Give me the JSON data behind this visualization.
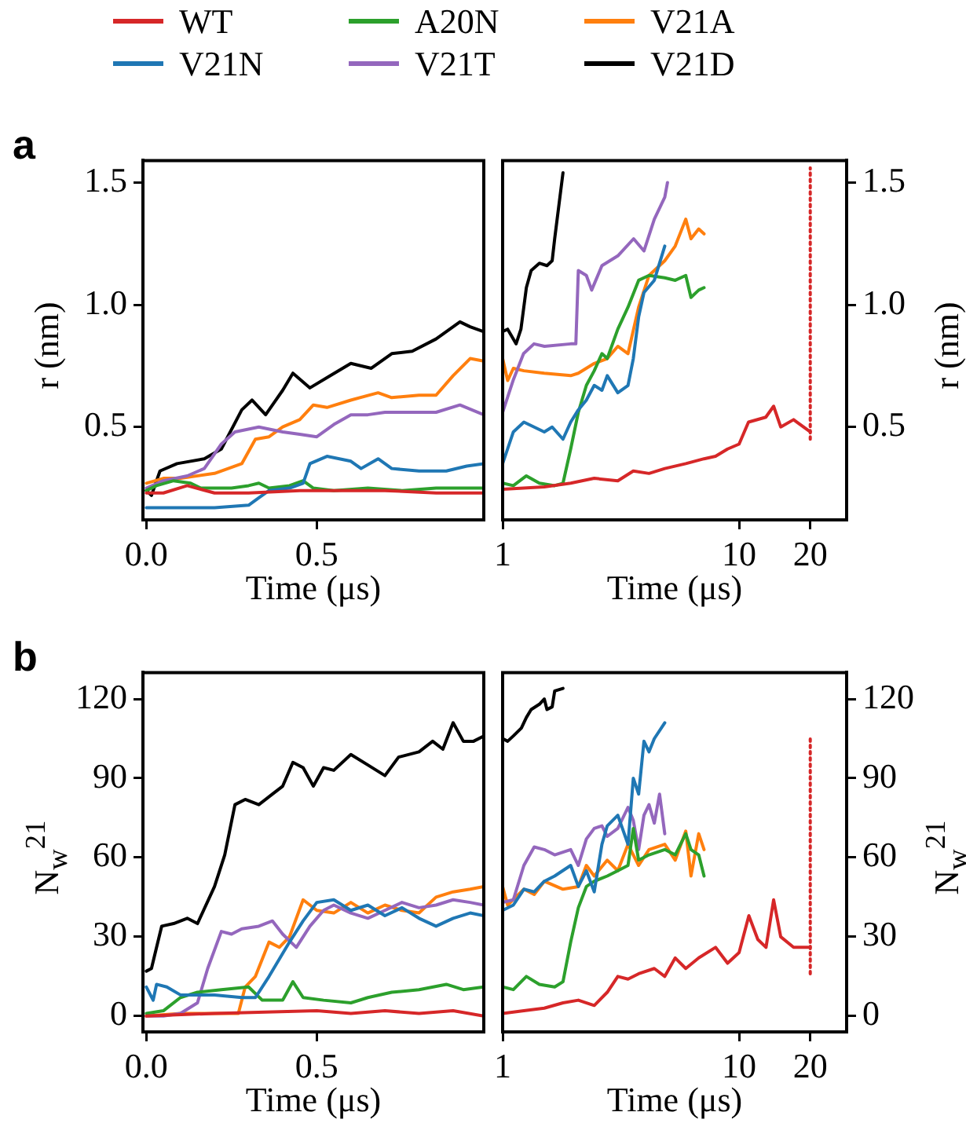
{
  "chart_data": [
    {
      "type": "line",
      "title": "a",
      "xlabel": "Time (μs)",
      "ylabel": "r (nm)",
      "legend": "top",
      "xlim": [
        -0.01,
        0.99
      ],
      "ylim": [
        0.12,
        1.59
      ],
      "xticks": [
        {
          "value": 0,
          "label": "0.0"
        },
        0.5
      ],
      "yticks": [
        0.5,
        {
          "value": 1,
          "label": "1.0"
        },
        1.5
      ],
      "series": [
        {
          "name": "WT",
          "color": "#d62728",
          "x": [
            0,
            0.05,
            0.12,
            0.2,
            0.3,
            0.45,
            0.55,
            0.7,
            0.85,
            0.99
          ],
          "values": [
            0.23,
            0.23,
            0.26,
            0.23,
            0.23,
            0.24,
            0.24,
            0.24,
            0.23,
            0.23
          ]
        },
        {
          "name": "V21N",
          "color": "#1f77b4",
          "x": [
            0,
            0.1,
            0.2,
            0.3,
            0.33,
            0.36,
            0.42,
            0.46,
            0.48,
            0.53,
            0.6,
            0.63,
            0.68,
            0.72,
            0.8,
            0.88,
            0.94,
            0.99
          ],
          "values": [
            0.17,
            0.17,
            0.17,
            0.18,
            0.21,
            0.24,
            0.25,
            0.27,
            0.35,
            0.38,
            0.36,
            0.33,
            0.37,
            0.33,
            0.32,
            0.32,
            0.34,
            0.35
          ]
        },
        {
          "name": "A20N",
          "color": "#2ca02c",
          "x": [
            0,
            0.03,
            0.08,
            0.13,
            0.16,
            0.25,
            0.3,
            0.33,
            0.36,
            0.42,
            0.46,
            0.49,
            0.55,
            0.65,
            0.75,
            0.85,
            0.99
          ],
          "values": [
            0.24,
            0.26,
            0.28,
            0.27,
            0.25,
            0.25,
            0.26,
            0.27,
            0.25,
            0.26,
            0.28,
            0.25,
            0.24,
            0.25,
            0.24,
            0.25,
            0.25
          ]
        },
        {
          "name": "V21T",
          "color": "#9467bd",
          "x": [
            0,
            0.05,
            0.12,
            0.17,
            0.22,
            0.26,
            0.33,
            0.4,
            0.45,
            0.5,
            0.55,
            0.6,
            0.65,
            0.7,
            0.75,
            0.85,
            0.92,
            0.99
          ],
          "values": [
            0.25,
            0.28,
            0.3,
            0.33,
            0.43,
            0.48,
            0.5,
            0.48,
            0.47,
            0.46,
            0.51,
            0.55,
            0.55,
            0.56,
            0.56,
            0.56,
            0.59,
            0.55
          ]
        },
        {
          "name": "V21A",
          "color": "#ff7f0e",
          "x": [
            0,
            0.05,
            0.1,
            0.2,
            0.28,
            0.32,
            0.36,
            0.4,
            0.45,
            0.49,
            0.53,
            0.6,
            0.68,
            0.72,
            0.8,
            0.85,
            0.9,
            0.95,
            0.99
          ],
          "values": [
            0.27,
            0.29,
            0.29,
            0.31,
            0.35,
            0.45,
            0.46,
            0.5,
            0.53,
            0.59,
            0.58,
            0.61,
            0.64,
            0.62,
            0.63,
            0.63,
            0.71,
            0.78,
            0.77
          ]
        },
        {
          "name": "V21D",
          "color": "#000000",
          "x": [
            0,
            0.015,
            0.04,
            0.09,
            0.17,
            0.22,
            0.28,
            0.31,
            0.35,
            0.4,
            0.43,
            0.48,
            0.54,
            0.6,
            0.66,
            0.72,
            0.78,
            0.85,
            0.92,
            0.95,
            0.99
          ],
          "values": [
            0.24,
            0.22,
            0.32,
            0.35,
            0.37,
            0.41,
            0.57,
            0.61,
            0.55,
            0.65,
            0.72,
            0.66,
            0.71,
            0.76,
            0.74,
            0.8,
            0.81,
            0.86,
            0.93,
            0.91,
            0.89
          ]
        }
      ]
    },
    {
      "type": "line",
      "xlabel": "Time (μs)",
      "y2label": "r (nm)",
      "log": "x",
      "xlim": [
        1,
        28.5
      ],
      "y2lim": [
        0.12,
        1.59
      ],
      "xticks": [
        1,
        10,
        20
      ],
      "y2ticks": [
        0.5,
        {
          "value": 1,
          "label": "1.0"
        },
        1.5
      ],
      "series": [
        {
          "color": "#d62728",
          "axis": "y2",
          "x": [
            1,
            1.5,
            1.94,
            2.44,
            3.07,
            3.57,
            4.16,
            4.85,
            5.95,
            7.11,
            7.95,
            8.94,
            10,
            10.96,
            12.97,
            14,
            15,
            17,
            20
          ],
          "values": [
            0.245,
            0.255,
            0.27,
            0.29,
            0.28,
            0.32,
            0.31,
            0.33,
            0.35,
            0.37,
            0.38,
            0.41,
            0.43,
            0.52,
            0.54,
            0.585,
            0.5,
            0.53,
            0.48
          ]
        },
        {
          "color": "#1f77b4",
          "axis": "y2",
          "x": [
            1,
            1.11,
            1.23,
            1.5,
            1.62,
            1.8,
            1.94,
            2.09,
            2.26,
            2.44,
            2.63,
            2.77,
            3.07,
            3.39,
            3.57,
            3.76,
            3.96,
            4.38,
            4.85
          ],
          "values": [
            0.35,
            0.48,
            0.52,
            0.48,
            0.5,
            0.45,
            0.52,
            0.57,
            0.61,
            0.67,
            0.65,
            0.71,
            0.64,
            0.67,
            0.78,
            0.95,
            1.05,
            1.1,
            1.24
          ]
        },
        {
          "color": "#2ca02c",
          "axis": "y2",
          "x": [
            1,
            1.11,
            1.26,
            1.43,
            1.66,
            1.8,
            1.94,
            2.09,
            2.26,
            2.44,
            2.63,
            2.77,
            3.07,
            3.39,
            3.76,
            4.16,
            4.85,
            5.37,
            5.95,
            6.26,
            6.75,
            7.11
          ],
          "values": [
            0.27,
            0.26,
            0.3,
            0.27,
            0.26,
            0.27,
            0.41,
            0.56,
            0.67,
            0.73,
            0.8,
            0.78,
            0.9,
            0.99,
            1.1,
            1.12,
            1.11,
            1.1,
            1.12,
            1.03,
            1.06,
            1.07
          ]
        },
        {
          "color": "#9467bd",
          "axis": "y2",
          "x": [
            1,
            1.107,
            1.226,
            1.357,
            1.503,
            1.94,
            2.04,
            2.09,
            2.26,
            2.38,
            2.63,
            3.07,
            3.58,
            3.96,
            4.38,
            4.85,
            4.98
          ],
          "values": [
            0.56,
            0.69,
            0.8,
            0.84,
            0.83,
            0.84,
            0.84,
            1.14,
            1.12,
            1.06,
            1.16,
            1.2,
            1.27,
            1.22,
            1.35,
            1.44,
            1.5
          ]
        },
        {
          "color": "#ff7f0e",
          "axis": "y2",
          "x": [
            1,
            1.05,
            1.11,
            1.23,
            1.5,
            1.94,
            2.09,
            2.44,
            2.77,
            3.07,
            3.39,
            3.76,
            4.16,
            4.85,
            5.37,
            5.95,
            6.26,
            6.75,
            7.11
          ],
          "values": [
            0.78,
            0.69,
            0.74,
            0.73,
            0.72,
            0.71,
            0.72,
            0.76,
            0.78,
            0.83,
            0.8,
            0.99,
            1.12,
            1.18,
            1.24,
            1.35,
            1.27,
            1.31,
            1.29
          ]
        },
        {
          "color": "#000000",
          "axis": "y2",
          "x": [
            1,
            1.05,
            1.14,
            1.195,
            1.26,
            1.32,
            1.43,
            1.54,
            1.62,
            1.66,
            1.8
          ],
          "values": [
            0.89,
            0.9,
            0.84,
            0.9,
            1.07,
            1.14,
            1.17,
            1.16,
            1.18,
            1.27,
            1.54
          ]
        },
        {
          "type": "line",
          "line_style": "dotted",
          "color": "#d62728",
          "axis": "y2",
          "x": [
            20,
            20
          ],
          "values": [
            0.45,
            1.56
          ]
        }
      ]
    },
    {
      "type": "line",
      "title": "b",
      "xlabel": "Time (μs)",
      "ylabel": "N$_{w}$$^{21}$",
      "xlim": [
        -0.01,
        0.99
      ],
      "ylim": [
        -6,
        130
      ],
      "xticks": [
        {
          "value": 0,
          "label": "0.0"
        },
        0.5
      ],
      "yticks": [
        0,
        30,
        60,
        90,
        120
      ],
      "series": [
        {
          "color": "#d62728",
          "x": [
            0,
            0.2,
            0.5,
            0.6,
            0.7,
            0.8,
            0.9,
            0.99
          ],
          "values": [
            0,
            1,
            2,
            1,
            2,
            1,
            2,
            0
          ]
        },
        {
          "color": "#1f77b4",
          "x": [
            0,
            0.02,
            0.03,
            0.06,
            0.1,
            0.2,
            0.28,
            0.32,
            0.36,
            0.42,
            0.46,
            0.5,
            0.55,
            0.6,
            0.65,
            0.7,
            0.75,
            0.8,
            0.85,
            0.9,
            0.95,
            0.99
          ],
          "values": [
            11,
            6,
            12,
            11,
            8,
            8,
            7,
            7,
            15,
            28,
            36,
            43,
            44,
            40,
            42,
            38,
            41,
            37,
            34,
            37,
            39,
            38
          ]
        },
        {
          "color": "#2ca02c",
          "x": [
            0,
            0.05,
            0.1,
            0.15,
            0.22,
            0.3,
            0.34,
            0.4,
            0.43,
            0.46,
            0.52,
            0.6,
            0.65,
            0.72,
            0.8,
            0.88,
            0.93,
            0.99
          ],
          "values": [
            1,
            2,
            7,
            9,
            10,
            11,
            6,
            6,
            13,
            7,
            6,
            5,
            7,
            9,
            10,
            12,
            10,
            11
          ]
        },
        {
          "color": "#9467bd",
          "x": [
            0,
            0.05,
            0.1,
            0.15,
            0.18,
            0.22,
            0.25,
            0.28,
            0.33,
            0.37,
            0.4,
            0.44,
            0.48,
            0.52,
            0.55,
            0.6,
            0.65,
            0.7,
            0.75,
            0.8,
            0.85,
            0.9,
            0.95,
            0.99
          ],
          "values": [
            0,
            0,
            1,
            5,
            18,
            32,
            31,
            33,
            34,
            36,
            31,
            26,
            34,
            40,
            42,
            39,
            37,
            40,
            43,
            41,
            42,
            44,
            43,
            42
          ]
        },
        {
          "color": "#ff7f0e",
          "x": [
            0,
            0.1,
            0.2,
            0.27,
            0.29,
            0.32,
            0.36,
            0.39,
            0.42,
            0.46,
            0.5,
            0.55,
            0.6,
            0.65,
            0.7,
            0.75,
            0.8,
            0.85,
            0.9,
            0.95,
            0.99
          ],
          "values": [
            0,
            1,
            1,
            1,
            11,
            15,
            28,
            26,
            30,
            44,
            40,
            39,
            43,
            39,
            42,
            40,
            39,
            45,
            47,
            48,
            49
          ]
        },
        {
          "color": "#000000",
          "x": [
            0,
            0.015,
            0.03,
            0.045,
            0.08,
            0.12,
            0.15,
            0.2,
            0.23,
            0.26,
            0.29,
            0.33,
            0.37,
            0.4,
            0.43,
            0.46,
            0.49,
            0.52,
            0.55,
            0.6,
            0.65,
            0.7,
            0.74,
            0.8,
            0.84,
            0.87,
            0.9,
            0.93,
            0.96,
            0.99
          ],
          "values": [
            17,
            18,
            26,
            34,
            35,
            37,
            35,
            49,
            61,
            80,
            82,
            80,
            84,
            87,
            96,
            94,
            87,
            94,
            93,
            99,
            95,
            91,
            98,
            100,
            104,
            101,
            111,
            104,
            104,
            106
          ]
        }
      ]
    },
    {
      "type": "line",
      "xlabel": "Time (μs)",
      "y2label": "N$_{w}$$^{21}$",
      "log": "x",
      "xlim": [
        1,
        28.5
      ],
      "y2lim": [
        -6,
        130
      ],
      "xticks": [
        1,
        10,
        20
      ],
      "y2ticks": [
        0,
        30,
        60,
        90,
        120
      ],
      "series": [
        {
          "color": "#d62728",
          "axis": "y2",
          "x": [
            1,
            1.23,
            1.5,
            1.8,
            2.09,
            2.44,
            2.77,
            3.07,
            3.39,
            3.76,
            4.38,
            4.85,
            5.37,
            5.95,
            6.75,
            7.95,
            8.94,
            10,
            11,
            12,
            13,
            14,
            15,
            17,
            20
          ],
          "values": [
            1,
            2,
            3,
            5,
            6,
            4,
            9,
            15,
            14,
            16,
            18,
            15,
            22,
            18,
            22,
            26,
            20,
            24,
            38,
            29,
            26,
            44,
            30,
            26,
            26
          ]
        },
        {
          "color": "#1f77b4",
          "axis": "y2",
          "x": [
            1,
            1.11,
            1.23,
            1.36,
            1.5,
            1.66,
            1.94,
            2.09,
            2.26,
            2.44,
            2.63,
            2.77,
            3.07,
            3.39,
            3.57,
            3.76,
            3.96,
            4.16,
            4.38,
            4.85
          ],
          "values": [
            40,
            42,
            48,
            47,
            51,
            53,
            57,
            49,
            55,
            47,
            65,
            72,
            76,
            65,
            90,
            84,
            104,
            100,
            105,
            111
          ]
        },
        {
          "color": "#2ca02c",
          "axis": "y2",
          "x": [
            1,
            1.11,
            1.26,
            1.43,
            1.66,
            1.8,
            1.94,
            2.09,
            2.26,
            2.44,
            2.77,
            3.07,
            3.39,
            3.57,
            3.76,
            4.16,
            4.85,
            5.37,
            5.95,
            6.26,
            6.75,
            7.11
          ],
          "values": [
            11,
            10,
            15,
            12,
            11,
            13,
            28,
            41,
            49,
            51,
            53,
            55,
            57,
            71,
            59,
            61,
            63,
            61,
            69,
            63,
            61,
            53
          ]
        },
        {
          "color": "#9467bd",
          "axis": "y2",
          "x": [
            1,
            1.11,
            1.23,
            1.36,
            1.5,
            1.66,
            1.94,
            2.09,
            2.26,
            2.44,
            2.63,
            2.77,
            3.07,
            3.39,
            3.57,
            3.76,
            3.96,
            4.16,
            4.38,
            4.61,
            4.85
          ],
          "values": [
            43,
            44,
            57,
            64,
            63,
            61,
            63,
            57,
            67,
            71,
            72,
            68,
            71,
            79,
            74,
            63,
            76,
            80,
            73,
            84,
            69
          ]
        },
        {
          "color": "#ff7f0e",
          "axis": "y2",
          "x": [
            1,
            1.05,
            1.23,
            1.36,
            1.5,
            1.8,
            2.09,
            2.26,
            2.44,
            2.77,
            3.07,
            3.39,
            3.76,
            4.16,
            4.85,
            5.37,
            5.95,
            6.26,
            6.75,
            7.11
          ],
          "values": [
            49,
            42,
            48,
            46,
            51,
            48,
            49,
            57,
            53,
            59,
            55,
            65,
            57,
            63,
            65,
            59,
            70,
            53,
            69,
            63
          ]
        },
        {
          "color": "#000000",
          "axis": "y2",
          "x": [
            1,
            1.05,
            1.11,
            1.2,
            1.26,
            1.32,
            1.43,
            1.5,
            1.54,
            1.62,
            1.66,
            1.8
          ],
          "values": [
            105,
            104,
            106,
            109,
            113,
            116,
            118,
            120,
            116,
            117,
            123,
            124
          ]
        },
        {
          "type": "line",
          "line_style": "dotted",
          "color": "#d62728",
          "axis": "y2",
          "x": [
            20,
            20
          ],
          "values": [
            16,
            105
          ]
        }
      ]
    }
  ]
}
